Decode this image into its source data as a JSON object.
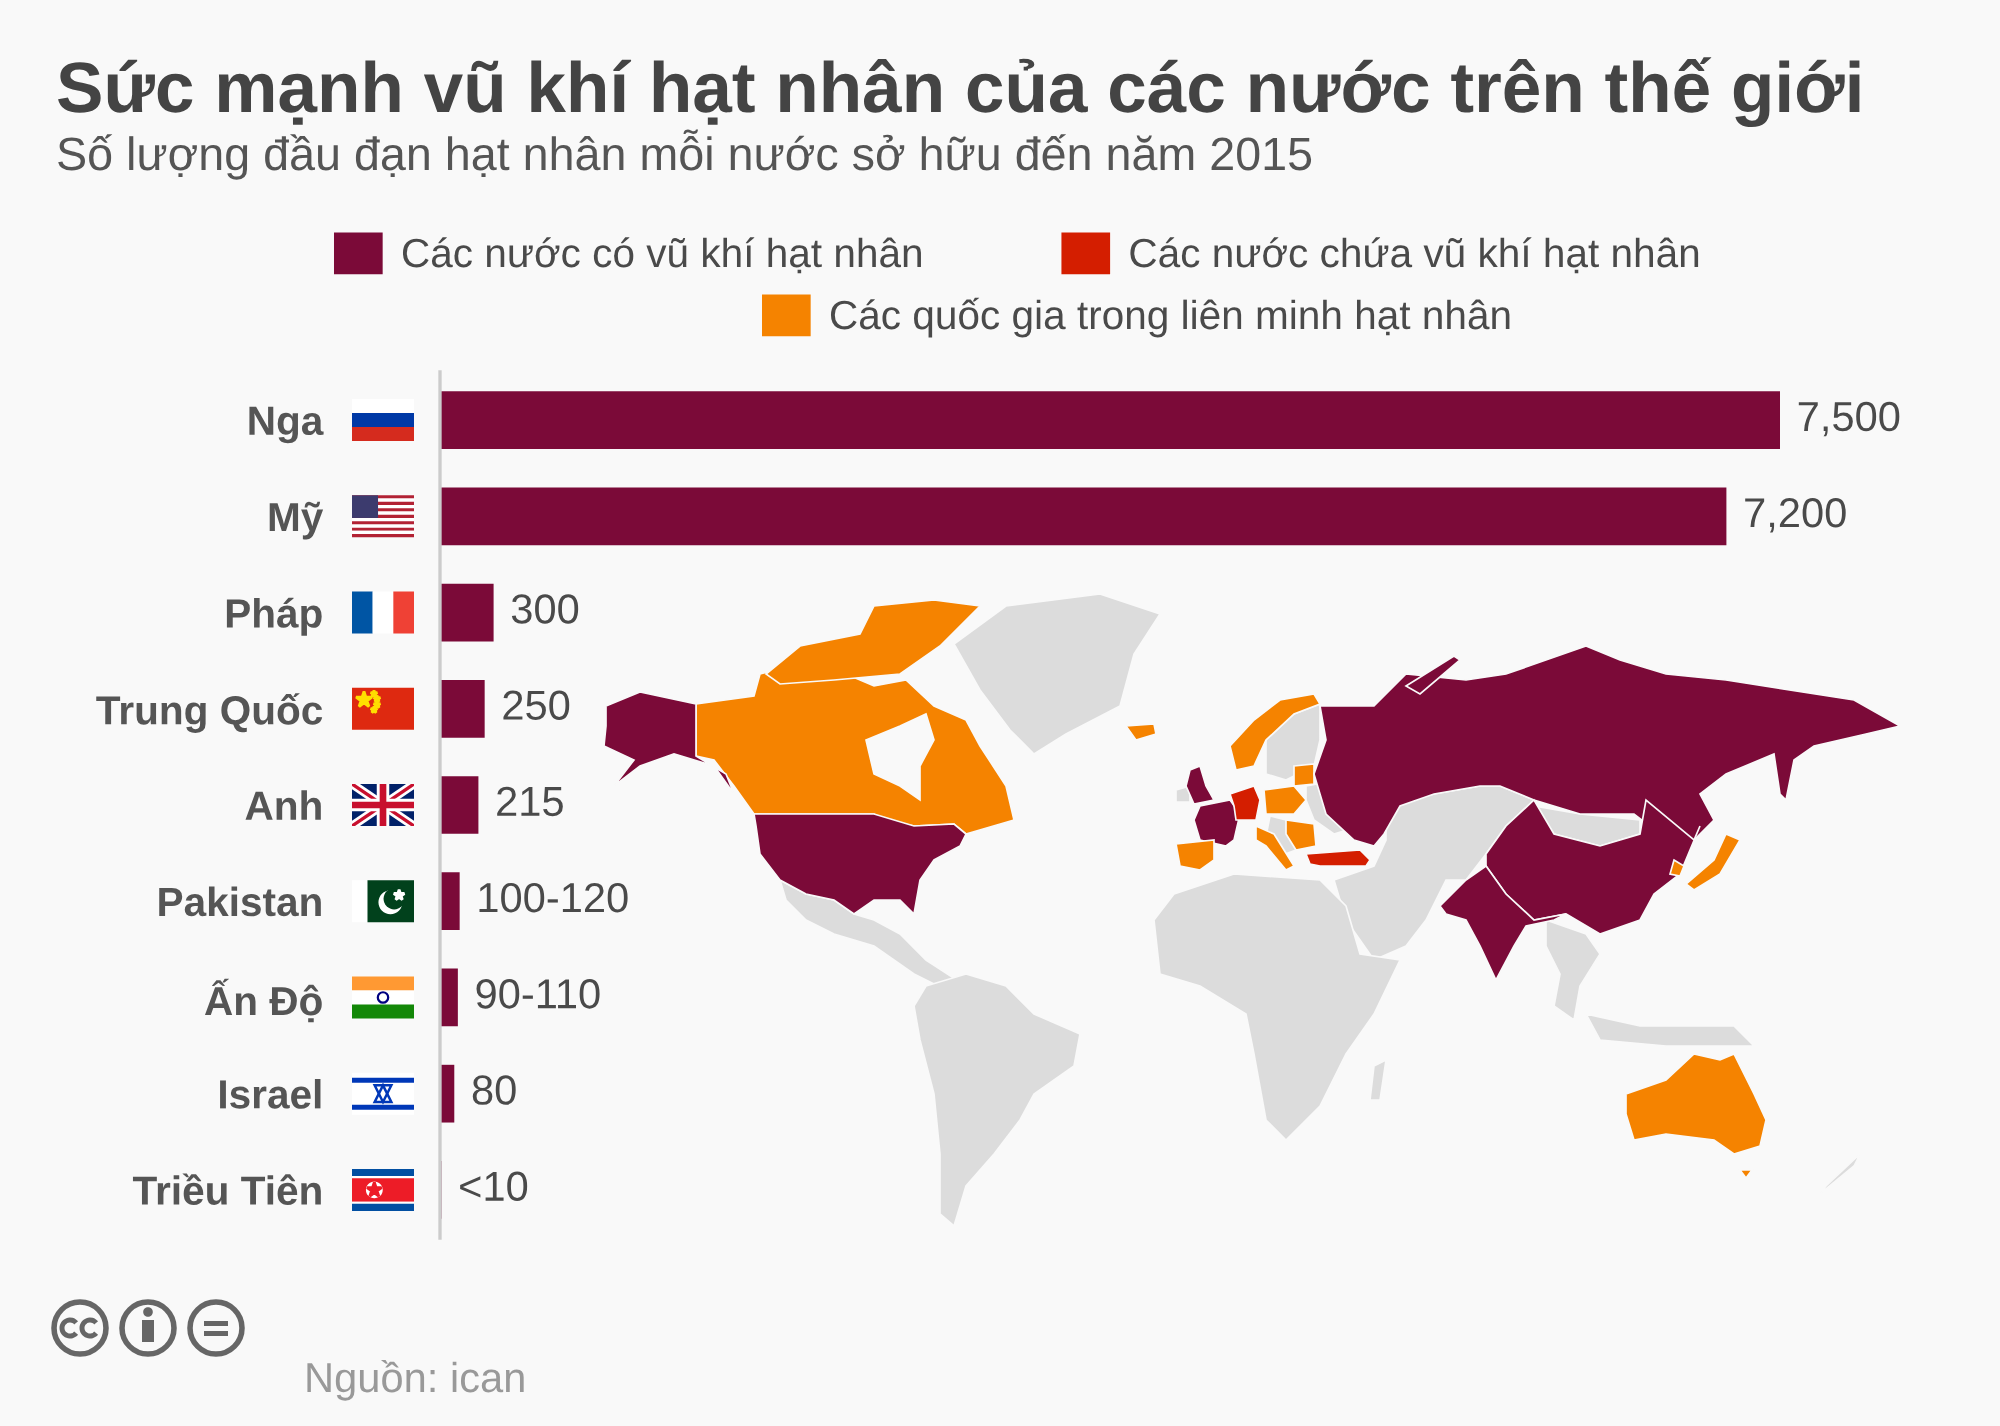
{
  "chart_data": {
    "type": "bar",
    "orientation": "horizontal",
    "title": "Sức mạnh vũ khí hạt nhân của các nước trên thế giới",
    "subtitle": "Số lượng đầu đạn hạt nhân mỗi nước sở hữu đến năm 2015",
    "categories": [
      "Nga",
      "Mỹ",
      "Pháp",
      "Trung Quốc",
      "Anh",
      "Pakistan",
      "Ấn Độ",
      "Israel",
      "Triều Tiên"
    ],
    "series": [
      {
        "name": "Các nước có vũ khí hạt nhân",
        "color": "#7b0a38",
        "values": [
          7500,
          7200,
          300,
          250,
          215,
          110,
          100,
          80,
          8
        ],
        "value_labels": [
          "7,500",
          "7,200",
          "300",
          "250",
          "215",
          "100-120",
          "90-110",
          "80",
          "<10"
        ]
      },
      {
        "name": "Các nước chứa vũ khí hạt nhân",
        "color": "#d41e00",
        "values": [
          null,
          null,
          null,
          null,
          null,
          null,
          null,
          null,
          null
        ]
      },
      {
        "name": "Các quốc gia trong liên minh hạt nhân",
        "color": "#f58300",
        "values": [
          null,
          null,
          null,
          null,
          null,
          null,
          null,
          null,
          null
        ]
      }
    ],
    "legend": "top",
    "tick_labels": "y",
    "annotations": [
      "Nguồn: ican"
    ]
  }
}
